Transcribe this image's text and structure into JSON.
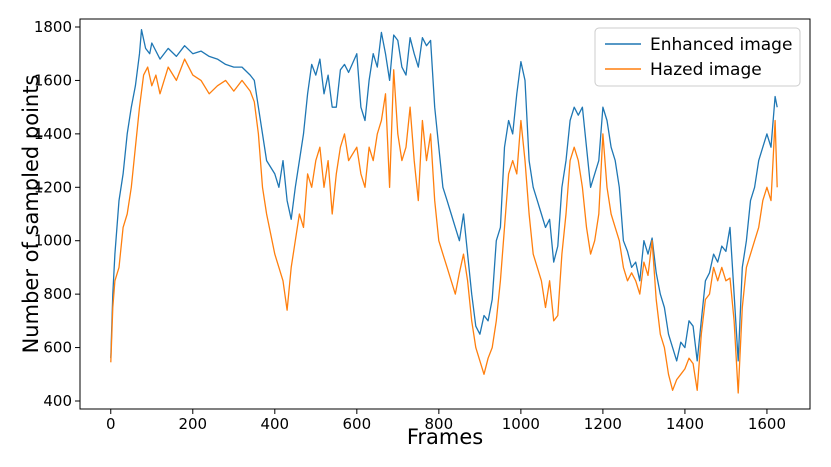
{
  "chart_data": {
    "type": "line",
    "xlabel": "Frames",
    "ylabel": "Number of sampled points",
    "xlim": [
      -75,
      1705
    ],
    "ylim": [
      370,
      1830
    ],
    "xticks": [
      0,
      200,
      400,
      600,
      800,
      1000,
      1200,
      1400,
      1600
    ],
    "yticks": [
      400,
      600,
      800,
      1000,
      1200,
      1400,
      1600,
      1800
    ],
    "legend_position": "top-right",
    "grid": false,
    "series": [
      {
        "name": "Enhanced image",
        "color": "#1f77b4",
        "points": [
          [
            0,
            560
          ],
          [
            5,
            800
          ],
          [
            10,
            950
          ],
          [
            20,
            1150
          ],
          [
            30,
            1250
          ],
          [
            40,
            1400
          ],
          [
            50,
            1500
          ],
          [
            60,
            1580
          ],
          [
            70,
            1700
          ],
          [
            75,
            1790
          ],
          [
            85,
            1720
          ],
          [
            95,
            1700
          ],
          [
            100,
            1740
          ],
          [
            120,
            1680
          ],
          [
            140,
            1720
          ],
          [
            160,
            1690
          ],
          [
            180,
            1730
          ],
          [
            200,
            1700
          ],
          [
            220,
            1710
          ],
          [
            240,
            1690
          ],
          [
            260,
            1680
          ],
          [
            280,
            1660
          ],
          [
            300,
            1650
          ],
          [
            320,
            1650
          ],
          [
            340,
            1620
          ],
          [
            350,
            1600
          ],
          [
            360,
            1500
          ],
          [
            370,
            1400
          ],
          [
            380,
            1300
          ],
          [
            400,
            1250
          ],
          [
            410,
            1200
          ],
          [
            420,
            1300
          ],
          [
            430,
            1150
          ],
          [
            440,
            1080
          ],
          [
            450,
            1200
          ],
          [
            460,
            1300
          ],
          [
            470,
            1400
          ],
          [
            480,
            1550
          ],
          [
            490,
            1660
          ],
          [
            500,
            1620
          ],
          [
            510,
            1680
          ],
          [
            520,
            1550
          ],
          [
            530,
            1620
          ],
          [
            540,
            1500
          ],
          [
            550,
            1500
          ],
          [
            560,
            1640
          ],
          [
            570,
            1660
          ],
          [
            580,
            1630
          ],
          [
            600,
            1700
          ],
          [
            610,
            1500
          ],
          [
            620,
            1450
          ],
          [
            630,
            1600
          ],
          [
            640,
            1700
          ],
          [
            650,
            1650
          ],
          [
            660,
            1780
          ],
          [
            670,
            1700
          ],
          [
            680,
            1600
          ],
          [
            690,
            1770
          ],
          [
            700,
            1750
          ],
          [
            710,
            1650
          ],
          [
            720,
            1620
          ],
          [
            730,
            1760
          ],
          [
            740,
            1700
          ],
          [
            750,
            1650
          ],
          [
            760,
            1760
          ],
          [
            770,
            1730
          ],
          [
            780,
            1750
          ],
          [
            790,
            1500
          ],
          [
            800,
            1350
          ],
          [
            810,
            1200
          ],
          [
            820,
            1150
          ],
          [
            830,
            1100
          ],
          [
            840,
            1050
          ],
          [
            850,
            1000
          ],
          [
            860,
            1100
          ],
          [
            870,
            950
          ],
          [
            880,
            800
          ],
          [
            890,
            680
          ],
          [
            900,
            650
          ],
          [
            910,
            720
          ],
          [
            920,
            700
          ],
          [
            930,
            780
          ],
          [
            940,
            1000
          ],
          [
            950,
            1050
          ],
          [
            960,
            1350
          ],
          [
            970,
            1450
          ],
          [
            980,
            1400
          ],
          [
            990,
            1550
          ],
          [
            1000,
            1670
          ],
          [
            1010,
            1600
          ],
          [
            1020,
            1300
          ],
          [
            1030,
            1200
          ],
          [
            1040,
            1150
          ],
          [
            1050,
            1100
          ],
          [
            1060,
            1050
          ],
          [
            1070,
            1080
          ],
          [
            1080,
            920
          ],
          [
            1090,
            980
          ],
          [
            1100,
            1200
          ],
          [
            1110,
            1300
          ],
          [
            1120,
            1450
          ],
          [
            1130,
            1500
          ],
          [
            1140,
            1470
          ],
          [
            1150,
            1500
          ],
          [
            1160,
            1350
          ],
          [
            1170,
            1200
          ],
          [
            1180,
            1250
          ],
          [
            1190,
            1300
          ],
          [
            1200,
            1500
          ],
          [
            1210,
            1450
          ],
          [
            1220,
            1350
          ],
          [
            1230,
            1300
          ],
          [
            1240,
            1200
          ],
          [
            1250,
            1000
          ],
          [
            1260,
            960
          ],
          [
            1270,
            900
          ],
          [
            1280,
            920
          ],
          [
            1290,
            850
          ],
          [
            1300,
            1000
          ],
          [
            1310,
            950
          ],
          [
            1320,
            1010
          ],
          [
            1330,
            880
          ],
          [
            1340,
            800
          ],
          [
            1350,
            750
          ],
          [
            1360,
            650
          ],
          [
            1370,
            600
          ],
          [
            1380,
            550
          ],
          [
            1390,
            620
          ],
          [
            1400,
            600
          ],
          [
            1410,
            700
          ],
          [
            1420,
            680
          ],
          [
            1430,
            550
          ],
          [
            1440,
            700
          ],
          [
            1450,
            850
          ],
          [
            1460,
            880
          ],
          [
            1470,
            950
          ],
          [
            1480,
            920
          ],
          [
            1490,
            980
          ],
          [
            1500,
            960
          ],
          [
            1510,
            1050
          ],
          [
            1520,
            800
          ],
          [
            1530,
            550
          ],
          [
            1540,
            900
          ],
          [
            1550,
            1000
          ],
          [
            1560,
            1150
          ],
          [
            1570,
            1200
          ],
          [
            1580,
            1300
          ],
          [
            1590,
            1350
          ],
          [
            1600,
            1400
          ],
          [
            1610,
            1350
          ],
          [
            1620,
            1540
          ],
          [
            1625,
            1500
          ]
        ]
      },
      {
        "name": "Hazed image",
        "color": "#ff7f0e",
        "points": [
          [
            0,
            545
          ],
          [
            5,
            750
          ],
          [
            10,
            850
          ],
          [
            20,
            900
          ],
          [
            30,
            1050
          ],
          [
            40,
            1100
          ],
          [
            50,
            1200
          ],
          [
            60,
            1350
          ],
          [
            70,
            1500
          ],
          [
            80,
            1620
          ],
          [
            90,
            1650
          ],
          [
            100,
            1580
          ],
          [
            110,
            1620
          ],
          [
            120,
            1550
          ],
          [
            140,
            1650
          ],
          [
            160,
            1600
          ],
          [
            180,
            1680
          ],
          [
            200,
            1620
          ],
          [
            220,
            1600
          ],
          [
            240,
            1550
          ],
          [
            260,
            1580
          ],
          [
            280,
            1600
          ],
          [
            300,
            1560
          ],
          [
            320,
            1600
          ],
          [
            340,
            1560
          ],
          [
            350,
            1520
          ],
          [
            360,
            1400
          ],
          [
            370,
            1200
          ],
          [
            380,
            1100
          ],
          [
            400,
            950
          ],
          [
            410,
            900
          ],
          [
            420,
            850
          ],
          [
            430,
            740
          ],
          [
            440,
            900
          ],
          [
            450,
            1000
          ],
          [
            460,
            1100
          ],
          [
            470,
            1050
          ],
          [
            480,
            1250
          ],
          [
            490,
            1200
          ],
          [
            500,
            1300
          ],
          [
            510,
            1350
          ],
          [
            520,
            1200
          ],
          [
            530,
            1300
          ],
          [
            540,
            1100
          ],
          [
            550,
            1250
          ],
          [
            560,
            1350
          ],
          [
            570,
            1400
          ],
          [
            580,
            1300
          ],
          [
            600,
            1350
          ],
          [
            610,
            1250
          ],
          [
            620,
            1200
          ],
          [
            630,
            1350
          ],
          [
            640,
            1300
          ],
          [
            650,
            1400
          ],
          [
            660,
            1450
          ],
          [
            670,
            1550
          ],
          [
            680,
            1200
          ],
          [
            690,
            1640
          ],
          [
            700,
            1400
          ],
          [
            710,
            1300
          ],
          [
            720,
            1350
          ],
          [
            730,
            1500
          ],
          [
            740,
            1300
          ],
          [
            750,
            1150
          ],
          [
            760,
            1450
          ],
          [
            770,
            1300
          ],
          [
            780,
            1400
          ],
          [
            790,
            1150
          ],
          [
            800,
            1000
          ],
          [
            810,
            950
          ],
          [
            820,
            900
          ],
          [
            830,
            850
          ],
          [
            840,
            800
          ],
          [
            850,
            880
          ],
          [
            860,
            950
          ],
          [
            870,
            850
          ],
          [
            880,
            700
          ],
          [
            890,
            600
          ],
          [
            900,
            550
          ],
          [
            910,
            500
          ],
          [
            920,
            560
          ],
          [
            930,
            600
          ],
          [
            940,
            700
          ],
          [
            950,
            850
          ],
          [
            960,
            1050
          ],
          [
            970,
            1250
          ],
          [
            980,
            1300
          ],
          [
            990,
            1250
          ],
          [
            1000,
            1450
          ],
          [
            1010,
            1300
          ],
          [
            1020,
            1100
          ],
          [
            1030,
            950
          ],
          [
            1040,
            900
          ],
          [
            1050,
            850
          ],
          [
            1060,
            750
          ],
          [
            1070,
            850
          ],
          [
            1080,
            700
          ],
          [
            1090,
            720
          ],
          [
            1100,
            950
          ],
          [
            1110,
            1100
          ],
          [
            1120,
            1300
          ],
          [
            1130,
            1350
          ],
          [
            1140,
            1300
          ],
          [
            1150,
            1200
          ],
          [
            1160,
            1050
          ],
          [
            1170,
            950
          ],
          [
            1180,
            1000
          ],
          [
            1190,
            1100
          ],
          [
            1200,
            1400
          ],
          [
            1210,
            1200
          ],
          [
            1220,
            1100
          ],
          [
            1230,
            1050
          ],
          [
            1240,
            1000
          ],
          [
            1250,
            900
          ],
          [
            1260,
            850
          ],
          [
            1270,
            880
          ],
          [
            1280,
            850
          ],
          [
            1290,
            800
          ],
          [
            1300,
            920
          ],
          [
            1310,
            870
          ],
          [
            1320,
            1000
          ],
          [
            1330,
            780
          ],
          [
            1340,
            650
          ],
          [
            1350,
            600
          ],
          [
            1360,
            500
          ],
          [
            1370,
            440
          ],
          [
            1380,
            480
          ],
          [
            1390,
            500
          ],
          [
            1400,
            520
          ],
          [
            1410,
            560
          ],
          [
            1420,
            540
          ],
          [
            1430,
            440
          ],
          [
            1440,
            650
          ],
          [
            1450,
            780
          ],
          [
            1460,
            800
          ],
          [
            1470,
            900
          ],
          [
            1480,
            850
          ],
          [
            1490,
            900
          ],
          [
            1500,
            850
          ],
          [
            1510,
            860
          ],
          [
            1520,
            700
          ],
          [
            1530,
            430
          ],
          [
            1540,
            750
          ],
          [
            1550,
            900
          ],
          [
            1560,
            950
          ],
          [
            1570,
            1000
          ],
          [
            1580,
            1050
          ],
          [
            1590,
            1150
          ],
          [
            1600,
            1200
          ],
          [
            1610,
            1150
          ],
          [
            1620,
            1450
          ],
          [
            1625,
            1200
          ]
        ]
      }
    ]
  }
}
